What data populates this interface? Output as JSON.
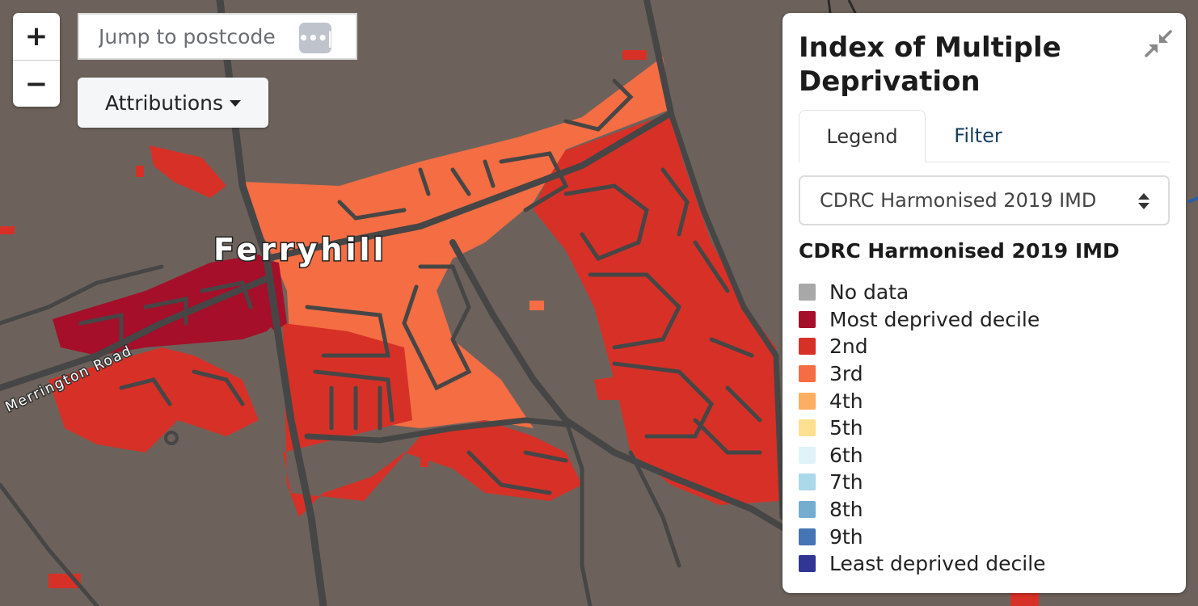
{
  "map": {
    "place_label": "Ferryhill",
    "road_label": "Merrington Road",
    "background_color": "#6d625b",
    "road_color": "#464646"
  },
  "controls": {
    "zoom_in_label": "+",
    "zoom_out_label": "−",
    "postcode_placeholder": "Jump to postcode",
    "password_manager_icon": "•••|",
    "attributions_label": "Attributions"
  },
  "panel": {
    "title": "Index of Multiple Deprivation",
    "collapse_icon": "collapse-arrows-icon",
    "tabs": [
      {
        "label": "Legend",
        "active": true
      },
      {
        "label": "Filter",
        "active": false
      }
    ],
    "dataset_select": {
      "value": "CDRC Harmonised 2019 IMD",
      "options": [
        "CDRC Harmonised 2019 IMD"
      ]
    },
    "legend_title": "CDRC Harmonised 2019 IMD",
    "legend": [
      {
        "label": "No data",
        "color": "#a8a8a8"
      },
      {
        "label": "Most deprived decile",
        "color": "#a50f2a"
      },
      {
        "label": "2nd",
        "color": "#d73027"
      },
      {
        "label": "3rd",
        "color": "#f46d43"
      },
      {
        "label": "4th",
        "color": "#fdae61"
      },
      {
        "label": "5th",
        "color": "#fee090"
      },
      {
        "label": "6th",
        "color": "#e0f3f8"
      },
      {
        "label": "7th",
        "color": "#abd9e9"
      },
      {
        "label": "8th",
        "color": "#74add1"
      },
      {
        "label": "9th",
        "color": "#4575b4"
      },
      {
        "label": "Least deprived decile",
        "color": "#313695"
      }
    ]
  }
}
